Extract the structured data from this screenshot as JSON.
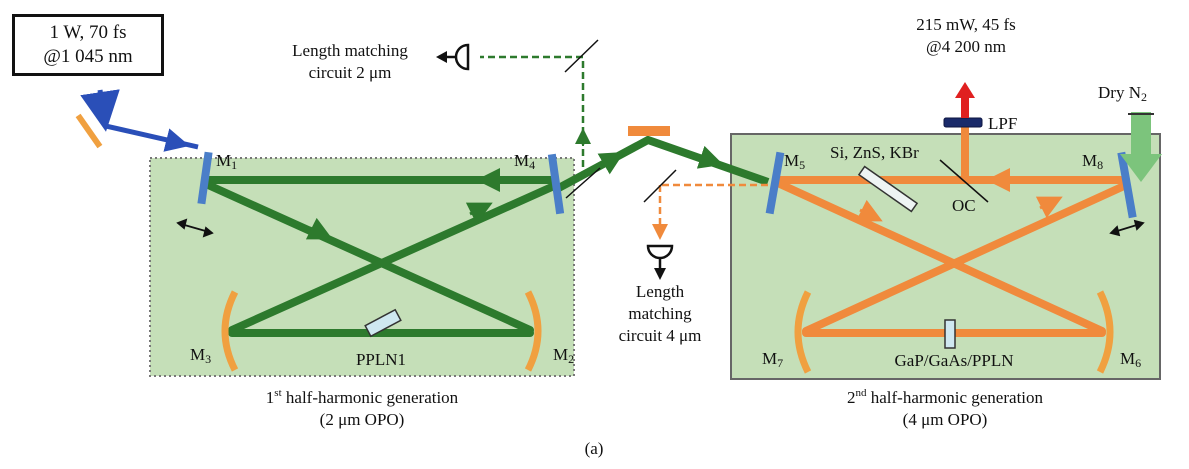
{
  "source": {
    "line1": "1 W, 70 fs",
    "line2": "@1 045 nm"
  },
  "output": {
    "line1": "215 mW, 45 fs",
    "line2": "@4 200 nm"
  },
  "lpf": "LPF",
  "dry_n2": {
    "prefix": "Dry N",
    "sub": "2"
  },
  "windows": "Si, ZnS, KBr",
  "oc": "OC",
  "length_matching_2um": {
    "line1": "Length matching",
    "line2": "circuit 2 μm"
  },
  "length_matching_4um": {
    "line1": "Length",
    "line2": "matching",
    "line3": "circuit 4 μm"
  },
  "mirrors": {
    "m1": {
      "base": "M",
      "sub": "1"
    },
    "m2": {
      "base": "M",
      "sub": "2"
    },
    "m3": {
      "base": "M",
      "sub": "3"
    },
    "m4": {
      "base": "M",
      "sub": "4"
    },
    "m5": {
      "base": "M",
      "sub": "5"
    },
    "m6": {
      "base": "M",
      "sub": "6"
    },
    "m7": {
      "base": "M",
      "sub": "7"
    },
    "m8": {
      "base": "M",
      "sub": "8"
    }
  },
  "crystal_1": "PPLN1",
  "crystal_2": "GaP/GaAs/PPLN",
  "stage_1": {
    "num": "1",
    "sup": "st",
    "title": " half-harmonic generation",
    "sub": "(2 μm OPO)"
  },
  "stage_2": {
    "num": "2",
    "sup": "nd",
    "title": " half-harmonic generation",
    "sub": "(4 μm OPO)"
  },
  "caption": "(a)",
  "colors": {
    "box_fill": "#c5dfb8",
    "green_beam": "#2d7a2d",
    "orange_beam": "#f08a3c",
    "blue_beam": "#2a4fb8",
    "mirror_blue": "#4a7ec8",
    "mirror_orange": "#f0a040",
    "red_arrow": "#e02020",
    "n2_arrow": "#7cc47c"
  }
}
